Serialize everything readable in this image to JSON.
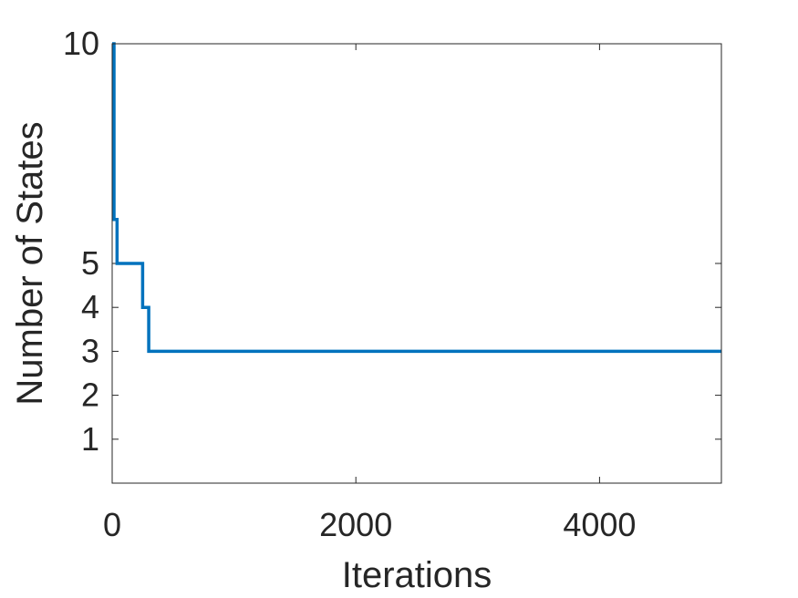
{
  "chart_data": {
    "type": "line",
    "xlabel": "Iterations",
    "ylabel": "Number of States",
    "xlim": [
      0,
      5000
    ],
    "ylim": [
      0,
      10
    ],
    "xticks": [
      0,
      2000,
      4000
    ],
    "yticks": [
      1,
      2,
      3,
      4,
      5,
      10
    ],
    "grid": false,
    "legend": "none",
    "series": [
      {
        "color": "#0072bd",
        "step": true,
        "x": [
          0,
          15,
          40,
          250,
          300,
          5000
        ],
        "y": [
          10,
          6,
          5,
          4,
          3,
          3
        ]
      }
    ]
  }
}
